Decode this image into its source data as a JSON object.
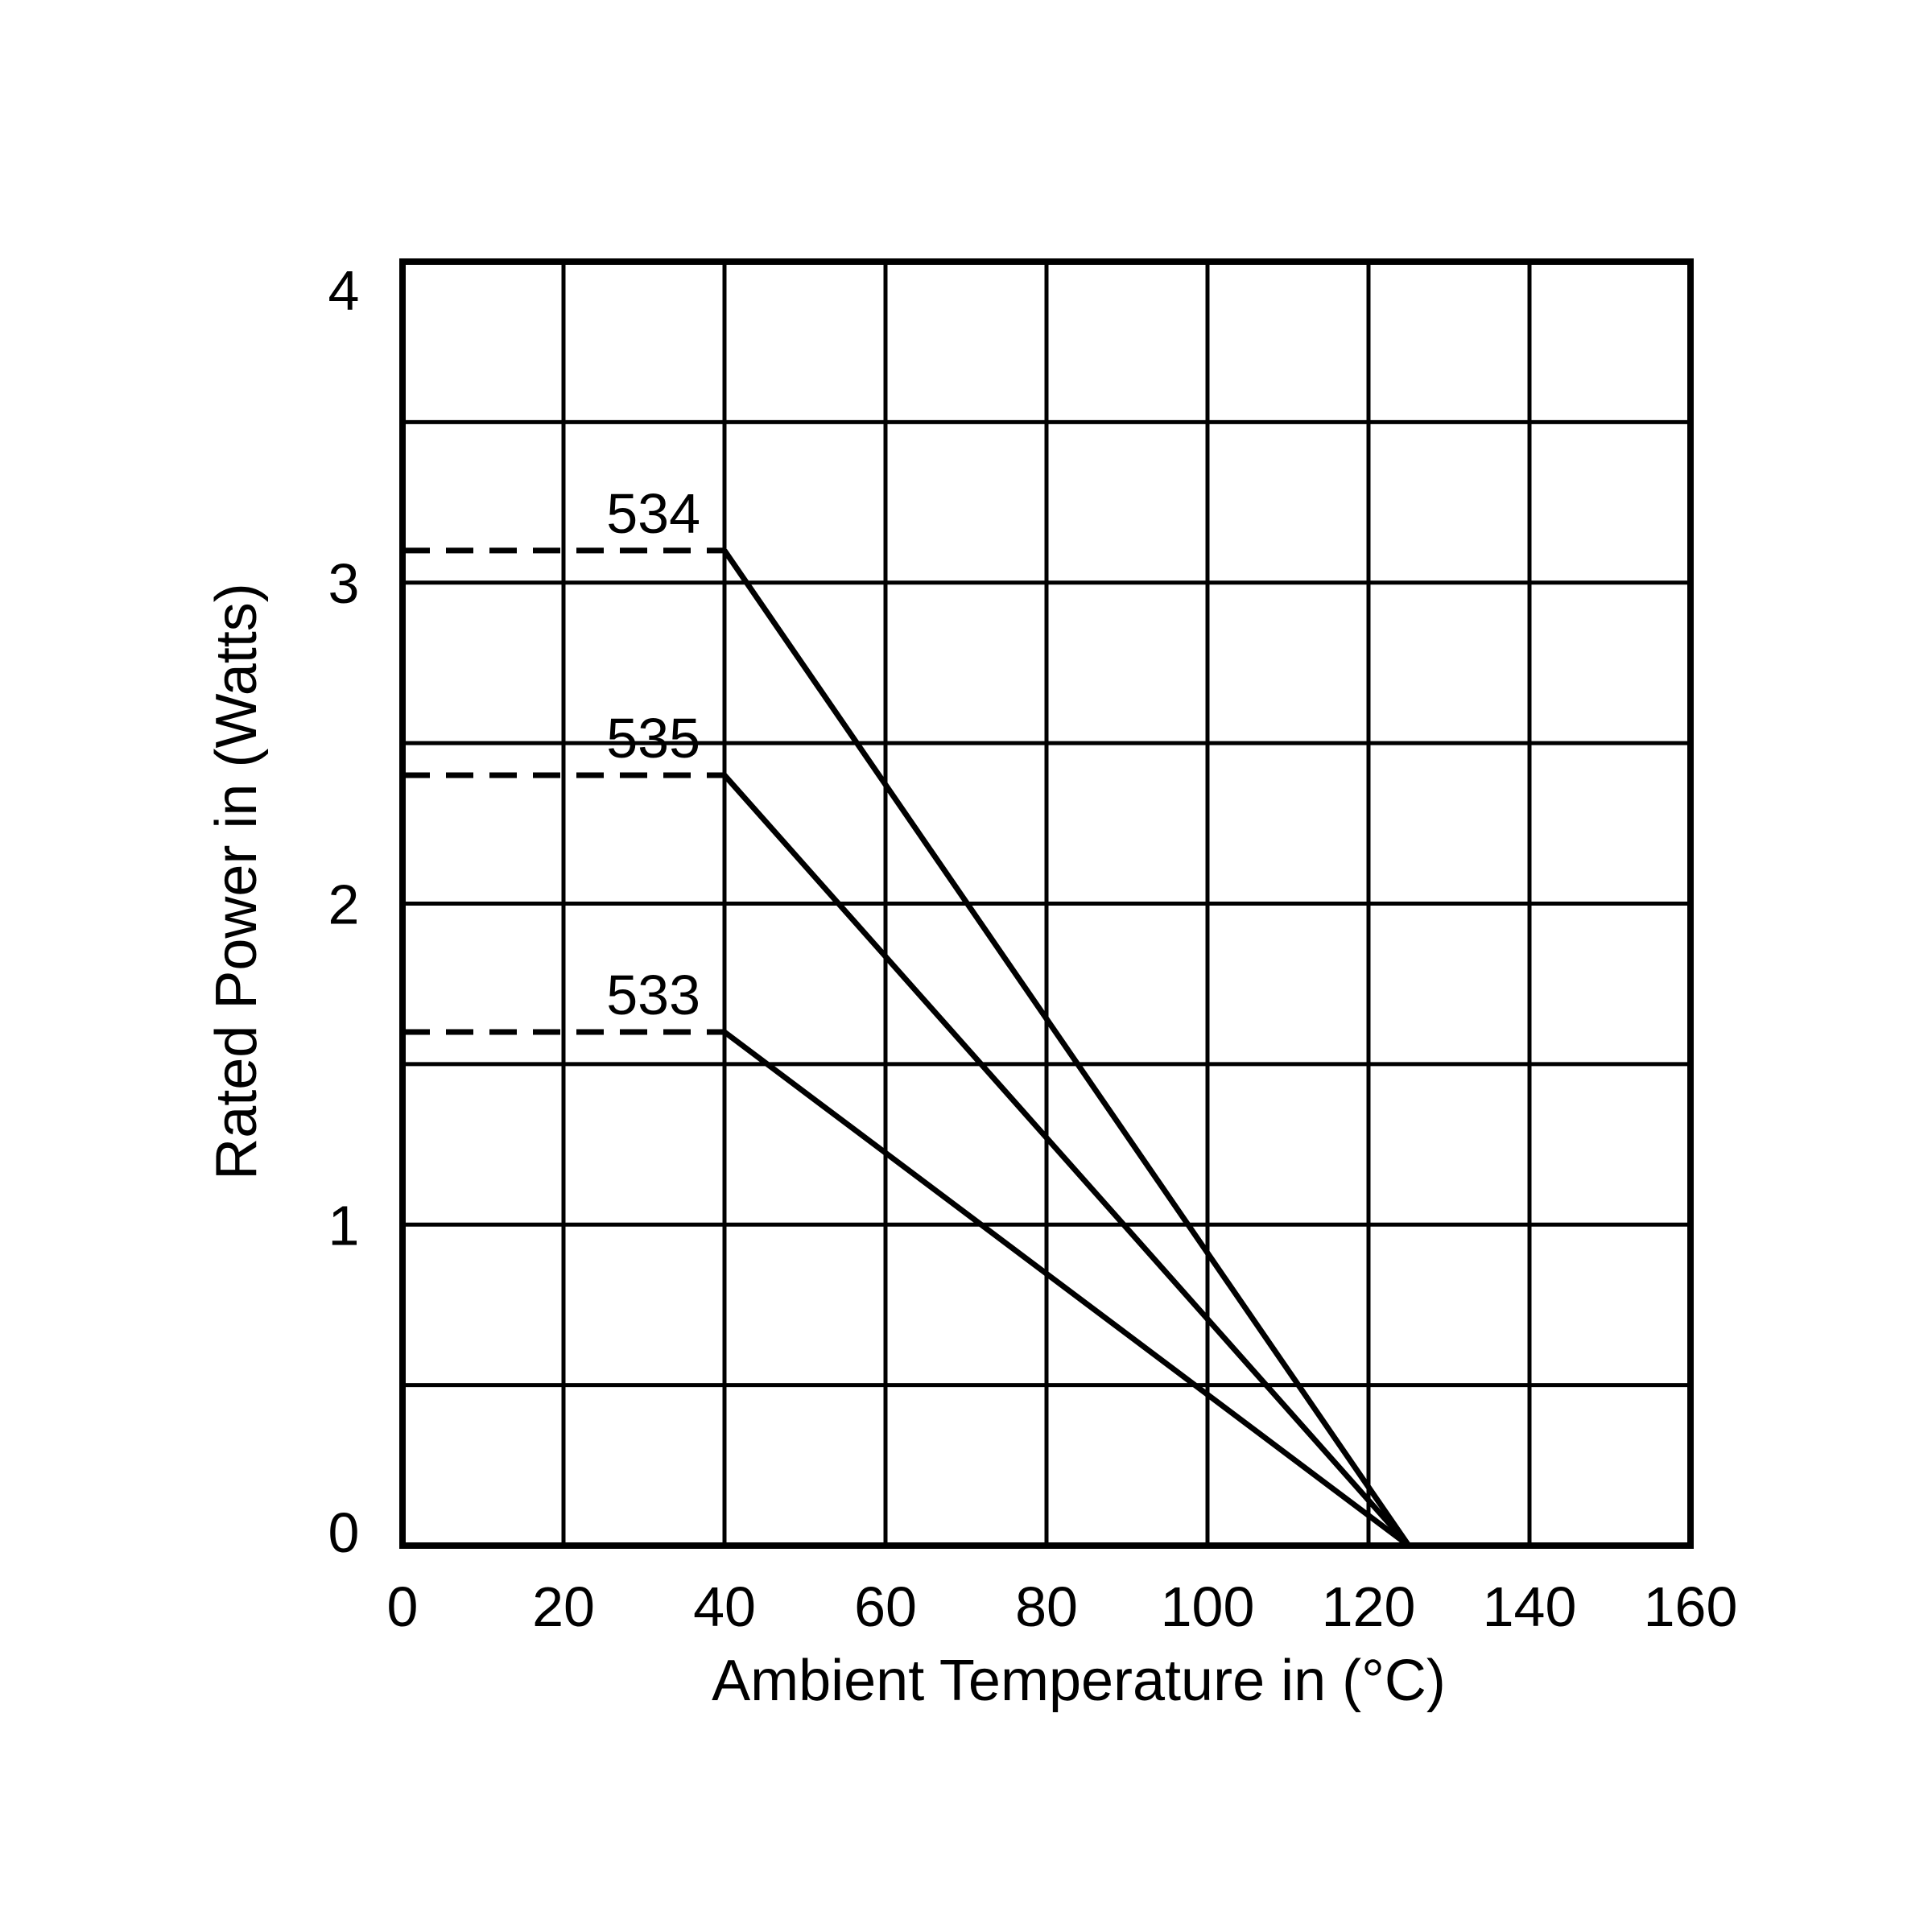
{
  "chart_data": {
    "type": "line",
    "title": "",
    "xlabel": "Ambient Temperature in (°C)",
    "ylabel": "Rated Power in (Watts)",
    "xlim": [
      0,
      160
    ],
    "ylim": [
      0,
      4
    ],
    "x_ticks": [
      "0",
      "20",
      "40",
      "60",
      "80",
      "100",
      "120",
      "140",
      "160"
    ],
    "y_ticks": [
      "0",
      "1",
      "2",
      "3",
      "4"
    ],
    "grid": true,
    "grid_x": [
      0,
      20,
      40,
      60,
      80,
      100,
      120,
      140,
      160
    ],
    "grid_y": [
      0,
      0.5,
      1,
      1.5,
      2,
      2.5,
      3,
      3.5,
      4
    ],
    "series": [
      {
        "name": "534",
        "flat": {
          "x": [
            0,
            40
          ],
          "y": [
            3.1,
            3.1
          ],
          "style": "dashed"
        },
        "derating": {
          "x": [
            40,
            125
          ],
          "y": [
            3.1,
            0
          ],
          "style": "solid"
        }
      },
      {
        "name": "535",
        "flat": {
          "x": [
            0,
            40
          ],
          "y": [
            2.4,
            2.4
          ],
          "style": "dashed"
        },
        "derating": {
          "x": [
            40,
            125
          ],
          "y": [
            2.4,
            0
          ],
          "style": "solid"
        }
      },
      {
        "name": "533",
        "flat": {
          "x": [
            0,
            40
          ],
          "y": [
            1.6,
            1.6
          ],
          "style": "dashed"
        },
        "derating": {
          "x": [
            40,
            125
          ],
          "y": [
            1.6,
            0
          ],
          "style": "solid"
        }
      }
    ],
    "colors": {
      "line": "#000000",
      "grid": "#000000",
      "background": "#ffffff"
    }
  }
}
